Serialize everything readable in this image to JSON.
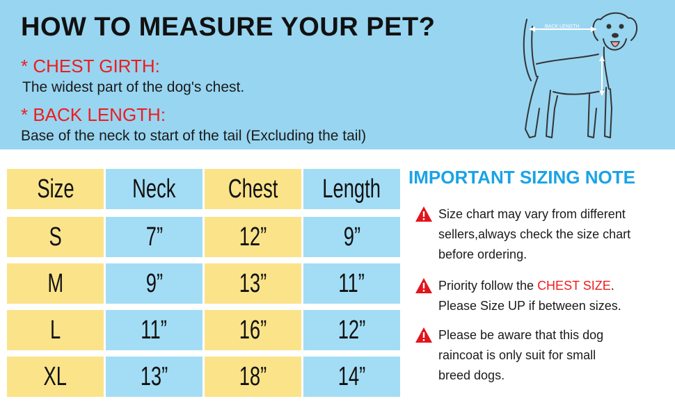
{
  "header": {
    "title": "HOW TO MEASURE YOUR PET?",
    "chest_heading": "* CHEST GIRTH:",
    "chest_text": "The widest part of the dog's chest.",
    "back_heading": "* BACK LENGTH:",
    "back_text": "Base of the neck to start of the tail (Excluding the tail)",
    "diagram_label": "BACK LENGTH"
  },
  "size_table": {
    "headers": [
      "Size",
      "Neck",
      "Chest",
      "Length"
    ],
    "rows": [
      [
        "S",
        "7”",
        "12”",
        "9”"
      ],
      [
        "M",
        "9”",
        "13”",
        "11”"
      ],
      [
        "L",
        "11”",
        "16”",
        "12”"
      ],
      [
        "XL",
        "13”",
        "18”",
        "14”"
      ]
    ]
  },
  "sizing_note": {
    "title": "IMPORTANT SIZING NOTE",
    "note1_line1": "Size chart may vary from different",
    "note1_line2": "sellers,always check the size chart",
    "note1_line3": "before ordering.",
    "note2_prefix": "Priority follow the ",
    "note2_highlight": "CHEST SIZE",
    "note2_suffix": ".",
    "note2_line2": "Please Size UP if between sizes.",
    "note3_line1": "Please be aware that this dog",
    "note3_line2": "raincoat is only suit for small",
    "note3_line3": "breed dogs."
  },
  "colors": {
    "header_band": "#98d5f1",
    "cell_yellow": "#fbe38a",
    "cell_blue": "#a3ddf5",
    "heading_red": "#ee1c1c",
    "note_title_blue": "#1aa3e6",
    "warning_red": "#e3141b"
  },
  "icons": [
    "dog-outline-diagram",
    "warning-triangle-icon"
  ]
}
